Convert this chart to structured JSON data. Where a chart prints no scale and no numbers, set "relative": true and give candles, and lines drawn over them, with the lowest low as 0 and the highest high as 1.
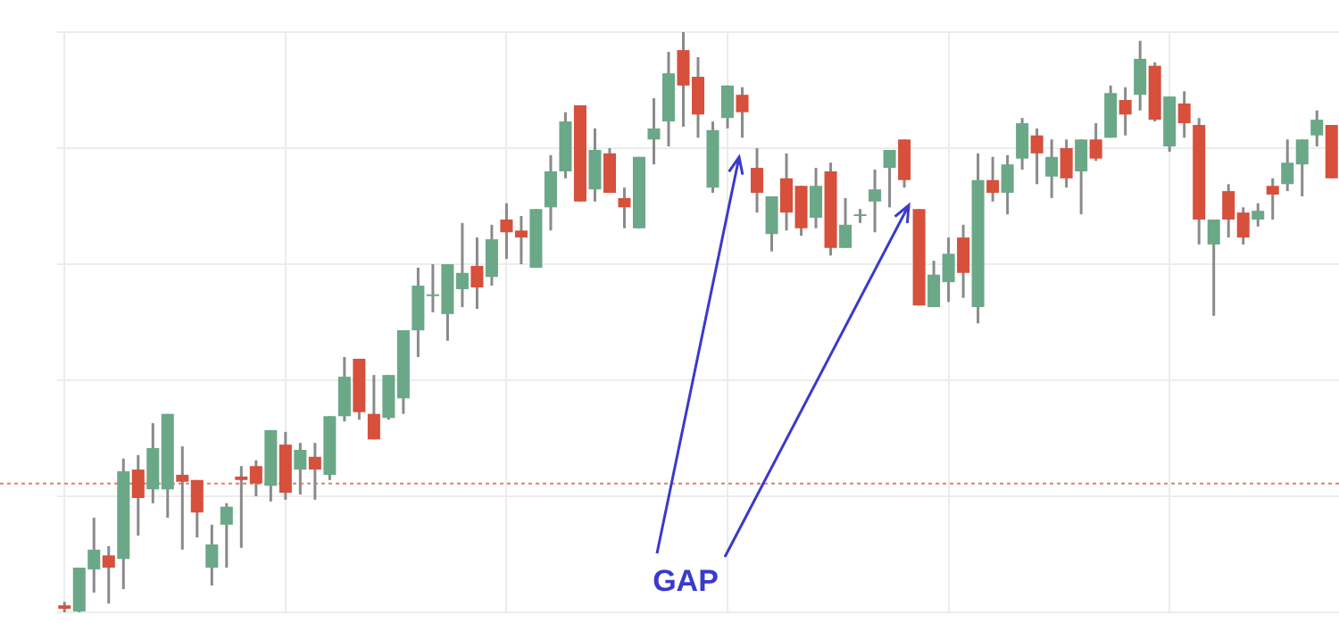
{
  "chart_data": {
    "type": "candlestick",
    "relative": true,
    "grid": true,
    "legend": false,
    "categories": [
      null,
      null,
      null,
      null,
      null,
      null,
      null,
      null,
      null,
      null,
      null,
      null,
      null,
      null,
      null,
      null,
      null,
      null,
      null,
      null,
      null,
      null,
      null,
      null,
      null,
      null,
      null,
      null,
      null,
      null,
      null,
      null,
      null,
      null,
      null,
      null,
      null,
      null,
      null,
      null,
      null,
      null,
      null,
      null,
      null,
      null,
      null,
      null,
      null,
      null,
      null,
      null,
      null,
      null,
      null,
      null,
      null,
      null,
      null,
      null,
      null,
      null,
      null,
      null,
      null,
      null,
      null,
      null,
      null,
      null,
      null,
      null,
      null,
      null,
      null,
      null,
      null,
      null,
      null,
      null,
      null,
      null,
      null,
      null,
      null,
      null,
      null
    ],
    "ohlc": [
      [
        0.012,
        0.018,
        0,
        0.006
      ],
      [
        0,
        0.077,
        0,
        0.077
      ],
      [
        0.074,
        0.163,
        0.034,
        0.108
      ],
      [
        0.098,
        0.114,
        0.015,
        0.077
      ],
      [
        0.092,
        0.265,
        0.04,
        0.243
      ],
      [
        0.246,
        0.271,
        0.132,
        0.197
      ],
      [
        0.212,
        0.326,
        0.188,
        0.283
      ],
      [
        0.212,
        0.342,
        0.163,
        0.342
      ],
      [
        0.237,
        0.286,
        0.108,
        0.225
      ],
      [
        0.228,
        0.228,
        0.129,
        0.172
      ],
      [
        0.077,
        0.151,
        0.046,
        0.117
      ],
      [
        0.151,
        0.188,
        0.077,
        0.182
      ],
      [
        0.234,
        0.252,
        0.111,
        0.228
      ],
      [
        0.252,
        0.262,
        0.2,
        0.222
      ],
      [
        0.218,
        0.314,
        0.191,
        0.314
      ],
      [
        0.289,
        0.311,
        0.194,
        0.206
      ],
      [
        0.246,
        0.292,
        0.203,
        0.28
      ],
      [
        0.268,
        0.292,
        0.194,
        0.246
      ],
      [
        0.237,
        0.338,
        0.228,
        0.338
      ],
      [
        0.338,
        0.44,
        0.329,
        0.406
      ],
      [
        0.437,
        0.437,
        0.332,
        0.345
      ],
      [
        0.342,
        0.409,
        0.298,
        0.298
      ],
      [
        0.335,
        0.409,
        0.332,
        0.409
      ],
      [
        0.369,
        0.486,
        0.342,
        0.486
      ],
      [
        0.486,
        0.594,
        0.44,
        0.563
      ],
      [
        0.545,
        0.6,
        0.517,
        0.548
      ],
      [
        0.514,
        0.6,
        0.468,
        0.6
      ],
      [
        0.557,
        0.671,
        0.526,
        0.585
      ],
      [
        0.597,
        0.646,
        0.523,
        0.56
      ],
      [
        0.578,
        0.668,
        0.563,
        0.643
      ],
      [
        0.677,
        0.705,
        0.609,
        0.655
      ],
      [
        0.658,
        0.683,
        0.6,
        0.646
      ],
      [
        0.594,
        0.695,
        0.594,
        0.695
      ],
      [
        0.698,
        0.788,
        0.658,
        0.76
      ],
      [
        0.76,
        0.862,
        0.748,
        0.846
      ],
      [
        0.874,
        0.874,
        0.708,
        0.708
      ],
      [
        0.729,
        0.834,
        0.708,
        0.797
      ],
      [
        0.791,
        0.8,
        0.723,
        0.723
      ],
      [
        0.714,
        0.732,
        0.662,
        0.698
      ],
      [
        0.662,
        0.785,
        0.662,
        0.785
      ],
      [
        0.815,
        0.886,
        0.772,
        0.834
      ],
      [
        0.846,
        0.966,
        0.803,
        0.929
      ],
      [
        0.969,
        1,
        0.837,
        0.908
      ],
      [
        0.923,
        0.957,
        0.818,
        0.858
      ],
      [
        0.732,
        0.846,
        0.723,
        0.831
      ],
      [
        0.852,
        0.908,
        0.834,
        0.908
      ],
      [
        0.892,
        0.905,
        0.818,
        0.862
      ],
      [
        0.766,
        0.8,
        0.689,
        0.723
      ],
      [
        0.652,
        0.717,
        0.622,
        0.717
      ],
      [
        0.748,
        0.791,
        0.658,
        0.689
      ],
      [
        0.735,
        0.735,
        0.649,
        0.662
      ],
      [
        0.68,
        0.766,
        0.662,
        0.735
      ],
      [
        0.76,
        0.775,
        0.615,
        0.628
      ],
      [
        0.628,
        0.714,
        0.628,
        0.668
      ],
      [
        0.683,
        0.695,
        0.671,
        0.686
      ],
      [
        0.708,
        0.763,
        0.655,
        0.729
      ],
      [
        0.766,
        0.797,
        0.698,
        0.797
      ],
      [
        0.815,
        0.815,
        0.732,
        0.745
      ],
      [
        0.695,
        0.695,
        0.529,
        0.529
      ],
      [
        0.526,
        0.606,
        0.526,
        0.582
      ],
      [
        0.569,
        0.646,
        0.535,
        0.618
      ],
      [
        0.646,
        0.668,
        0.542,
        0.585
      ],
      [
        0.526,
        0.791,
        0.498,
        0.745
      ],
      [
        0.745,
        0.785,
        0.708,
        0.723
      ],
      [
        0.723,
        0.788,
        0.686,
        0.772
      ],
      [
        0.782,
        0.852,
        0.763,
        0.843
      ],
      [
        0.822,
        0.834,
        0.738,
        0.791
      ],
      [
        0.751,
        0.815,
        0.714,
        0.785
      ],
      [
        0.8,
        0.815,
        0.732,
        0.748
      ],
      [
        0.76,
        0.815,
        0.686,
        0.815
      ],
      [
        0.815,
        0.843,
        0.778,
        0.782
      ],
      [
        0.818,
        0.908,
        0.818,
        0.895
      ],
      [
        0.883,
        0.905,
        0.822,
        0.858
      ],
      [
        0.892,
        0.985,
        0.865,
        0.954
      ],
      [
        0.942,
        0.948,
        0.846,
        0.849
      ],
      [
        0.803,
        0.889,
        0.794,
        0.889
      ],
      [
        0.877,
        0.898,
        0.818,
        0.843
      ],
      [
        0.84,
        0.852,
        0.634,
        0.677
      ],
      [
        0.634,
        0.677,
        0.511,
        0.677
      ],
      [
        0.726,
        0.738,
        0.646,
        0.677
      ],
      [
        0.689,
        0.698,
        0.634,
        0.646
      ],
      [
        0.677,
        0.705,
        0.665,
        0.692
      ],
      [
        0.735,
        0.748,
        0.677,
        0.72
      ],
      [
        0.738,
        0.815,
        0.726,
        0.775
      ],
      [
        0.772,
        0.815,
        0.717,
        0.815
      ],
      [
        0.822,
        0.865,
        0.803,
        0.849
      ],
      [
        0.84,
        0.84,
        0.748,
        0.748
      ]
    ],
    "colors": [
      "#d6503c",
      "#6aa887",
      "#6aa887",
      "#d6503c",
      "#6aa887",
      "#d6503c",
      "#6aa887",
      "#6aa887",
      "#d6503c",
      "#d6503c",
      "#6aa887",
      "#6aa887",
      "#d6503c",
      "#d6503c",
      "#6aa887",
      "#d6503c",
      "#6aa887",
      "#d6503c",
      "#6aa887",
      "#6aa887",
      "#d6503c",
      "#d6503c",
      "#6aa887",
      "#6aa887",
      "#6aa887",
      "#6aa887",
      "#6aa887",
      "#6aa887",
      "#d6503c",
      "#6aa887",
      "#d6503c",
      "#d6503c",
      "#6aa887",
      "#6aa887",
      "#6aa887",
      "#d6503c",
      "#6aa887",
      "#d6503c",
      "#d6503c",
      "#6aa887",
      "#6aa887",
      "#6aa887",
      "#d6503c",
      "#d6503c",
      "#6aa887",
      "#6aa887",
      "#d6503c",
      "#d6503c",
      "#6aa887",
      "#d6503c",
      "#d6503c",
      "#6aa887",
      "#d6503c",
      "#6aa887",
      "#6aa887",
      "#6aa887",
      "#6aa887",
      "#d6503c",
      "#d6503c",
      "#6aa887",
      "#6aa887",
      "#d6503c",
      "#6aa887",
      "#d6503c",
      "#6aa887",
      "#6aa887",
      "#d6503c",
      "#6aa887",
      "#d6503c",
      "#6aa887",
      "#d6503c",
      "#6aa887",
      "#d6503c",
      "#6aa887",
      "#d6503c",
      "#6aa887",
      "#d6503c",
      "#d6503c",
      "#6aa887",
      "#d6503c",
      "#d6503c",
      "#6aa887",
      "#d6503c",
      "#6aa887",
      "#6aa887",
      "#6aa887",
      "#d6503c"
    ],
    "ref_lines": [
      {
        "axis": "y",
        "value": 0.222,
        "color": "#e08070",
        "line_style": "dotted"
      }
    ],
    "annotations": [
      "GAP"
    ]
  }
}
